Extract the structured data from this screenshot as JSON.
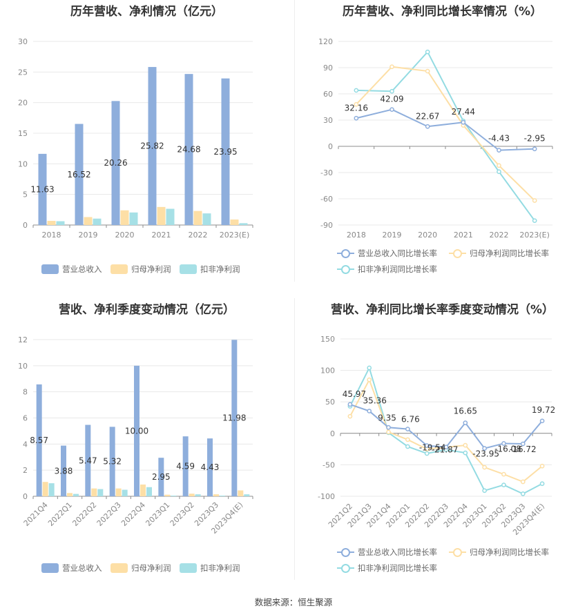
{
  "source_text": "数据来源：恒生聚源",
  "colors": {
    "revenue": "#8eaedc",
    "net_profit": "#fddfa6",
    "deducted": "#a6e0e6",
    "revenue_line": "#8eaedc",
    "net_line": "#fddfa6",
    "deducted_line": "#93dbe2"
  },
  "chart_data": [
    {
      "id": "annual_bar",
      "type": "bar",
      "title": "历年营收、净利情况（亿元）",
      "categories": [
        "2018",
        "2019",
        "2020",
        "2021",
        "2022",
        "2023(E)"
      ],
      "series": [
        {
          "name": "营业总收入",
          "values": [
            11.63,
            16.52,
            20.26,
            25.82,
            24.68,
            23.95
          ]
        },
        {
          "name": "归母净利润",
          "values": [
            0.68,
            1.3,
            2.4,
            2.95,
            2.3,
            0.9
          ]
        },
        {
          "name": "扣非净利润",
          "values": [
            0.62,
            1.05,
            2.05,
            2.65,
            1.9,
            0.3
          ]
        }
      ],
      "data_labels": [
        "11.63",
        "16.52",
        "20.26",
        "25.82",
        "24.68",
        "23.95"
      ],
      "ylim": [
        0,
        30
      ],
      "yticks": [
        "0",
        "5",
        "10",
        "15",
        "20",
        "25",
        "30"
      ],
      "grid": true,
      "legend_position": "bottom"
    },
    {
      "id": "annual_line",
      "type": "line",
      "title": "历年营收、净利同比增长率情况（%）",
      "categories": [
        "2018",
        "2019",
        "2020",
        "2021",
        "2022",
        "2023(E)"
      ],
      "series": [
        {
          "name": "营业总收入同比增长率",
          "values": [
            32.16,
            42.09,
            22.67,
            27.44,
            -4.43,
            -2.95
          ]
        },
        {
          "name": "归母净利润同比增长率",
          "values": [
            48,
            91,
            86,
            24,
            -22,
            -62
          ]
        },
        {
          "name": "扣非净利润同比增长率",
          "values": [
            64,
            63,
            108,
            29,
            -29,
            -85
          ]
        }
      ],
      "data_labels": [
        "32.16",
        "42.09",
        "22.67",
        "27.44",
        "-4.43",
        "-2.95"
      ],
      "ylim": [
        -90,
        120
      ],
      "yticks": [
        "-90",
        "-60",
        "-30",
        "0",
        "30",
        "60",
        "90",
        "120"
      ],
      "grid": true,
      "legend_position": "bottom"
    },
    {
      "id": "quarter_bar",
      "type": "bar",
      "title": "营收、净利季度变动情况（亿元）",
      "categories": [
        "2021Q4",
        "2022Q1",
        "2022Q2",
        "2022Q3",
        "2022Q4",
        "2023Q1",
        "2023Q2",
        "2023Q3",
        "2023Q4(E)"
      ],
      "series": [
        {
          "name": "营业总收入",
          "values": [
            8.57,
            3.88,
            5.47,
            5.32,
            10.0,
            2.95,
            4.59,
            4.43,
            11.98
          ]
        },
        {
          "name": "归母净利润",
          "values": [
            1.1,
            0.25,
            0.6,
            0.6,
            0.9,
            0.12,
            0.2,
            0.15,
            0.45
          ]
        },
        {
          "name": "扣非净利润",
          "values": [
            1.0,
            0.18,
            0.55,
            0.5,
            0.7,
            0.05,
            0.15,
            0.05,
            0.15
          ]
        }
      ],
      "data_labels": [
        "8.57",
        "3.88",
        "5.47",
        "5.32",
        "10.00",
        "2.95",
        "4.59",
        "4.43",
        "11.98"
      ],
      "ylim": [
        0,
        12
      ],
      "yticks": [
        "0",
        "2",
        "4",
        "6",
        "8",
        "10",
        "12"
      ],
      "grid": true,
      "legend_position": "bottom"
    },
    {
      "id": "quarter_line",
      "type": "line",
      "title": "营收、净利同比增长率季度变动情况（%）",
      "categories": [
        "2021Q2",
        "2021Q3",
        "2021Q4",
        "2022Q1",
        "2022Q2",
        "2022Q3",
        "2022Q4",
        "2023Q1",
        "2023Q2",
        "2023Q3",
        "2023Q4(E)"
      ],
      "series": [
        {
          "name": "营业总收入同比增长率",
          "values": [
            45.97,
            35.36,
            9.35,
            6.76,
            -19.54,
            -21.87,
            16.65,
            -23.95,
            -16.08,
            -16.72,
            19.72
          ]
        },
        {
          "name": "归母净利润同比增长率",
          "values": [
            27,
            85,
            2,
            -10,
            -25,
            -22,
            -19,
            -54,
            -65,
            -77,
            -52
          ]
        },
        {
          "name": "扣非净利润同比增长率",
          "values": [
            43,
            104,
            1,
            -21,
            -32,
            -26,
            -31,
            -91,
            -82,
            -96,
            -80
          ]
        }
      ],
      "data_labels": [
        "45.97",
        "35.36",
        "9.35",
        "6.76",
        "-19.54",
        "-21.87",
        "16.65",
        "-23.95",
        "-16.08",
        "-16.72",
        "19.72"
      ],
      "ylim": [
        -100,
        150
      ],
      "yticks": [
        "-100",
        "-50",
        "0",
        "50",
        "100",
        "150"
      ],
      "grid": true,
      "legend_position": "bottom"
    }
  ]
}
